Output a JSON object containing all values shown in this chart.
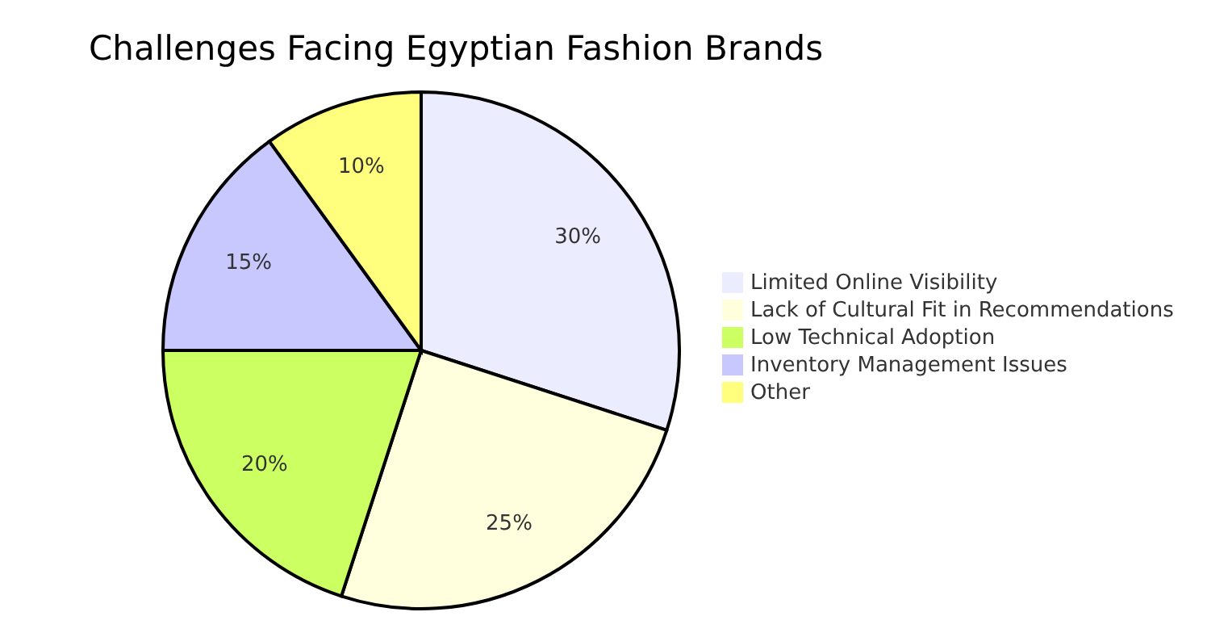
{
  "chart_data": {
    "type": "pie",
    "title": "Challenges Facing Egyptian Fashion Brands",
    "categories": [
      "Limited Online Visibility",
      "Lack of Cultural Fit in Recommendations",
      "Low Technical Adoption",
      "Inventory Management Issues",
      "Other"
    ],
    "values": [
      30,
      25,
      20,
      15,
      10
    ],
    "colors": [
      "#ececff",
      "#ffffde",
      "#cbff62",
      "#c8c8ff",
      "#ffff7d"
    ],
    "value_labels": [
      "30%",
      "25%",
      "20%",
      "15%",
      "10%"
    ],
    "legend": "right"
  }
}
